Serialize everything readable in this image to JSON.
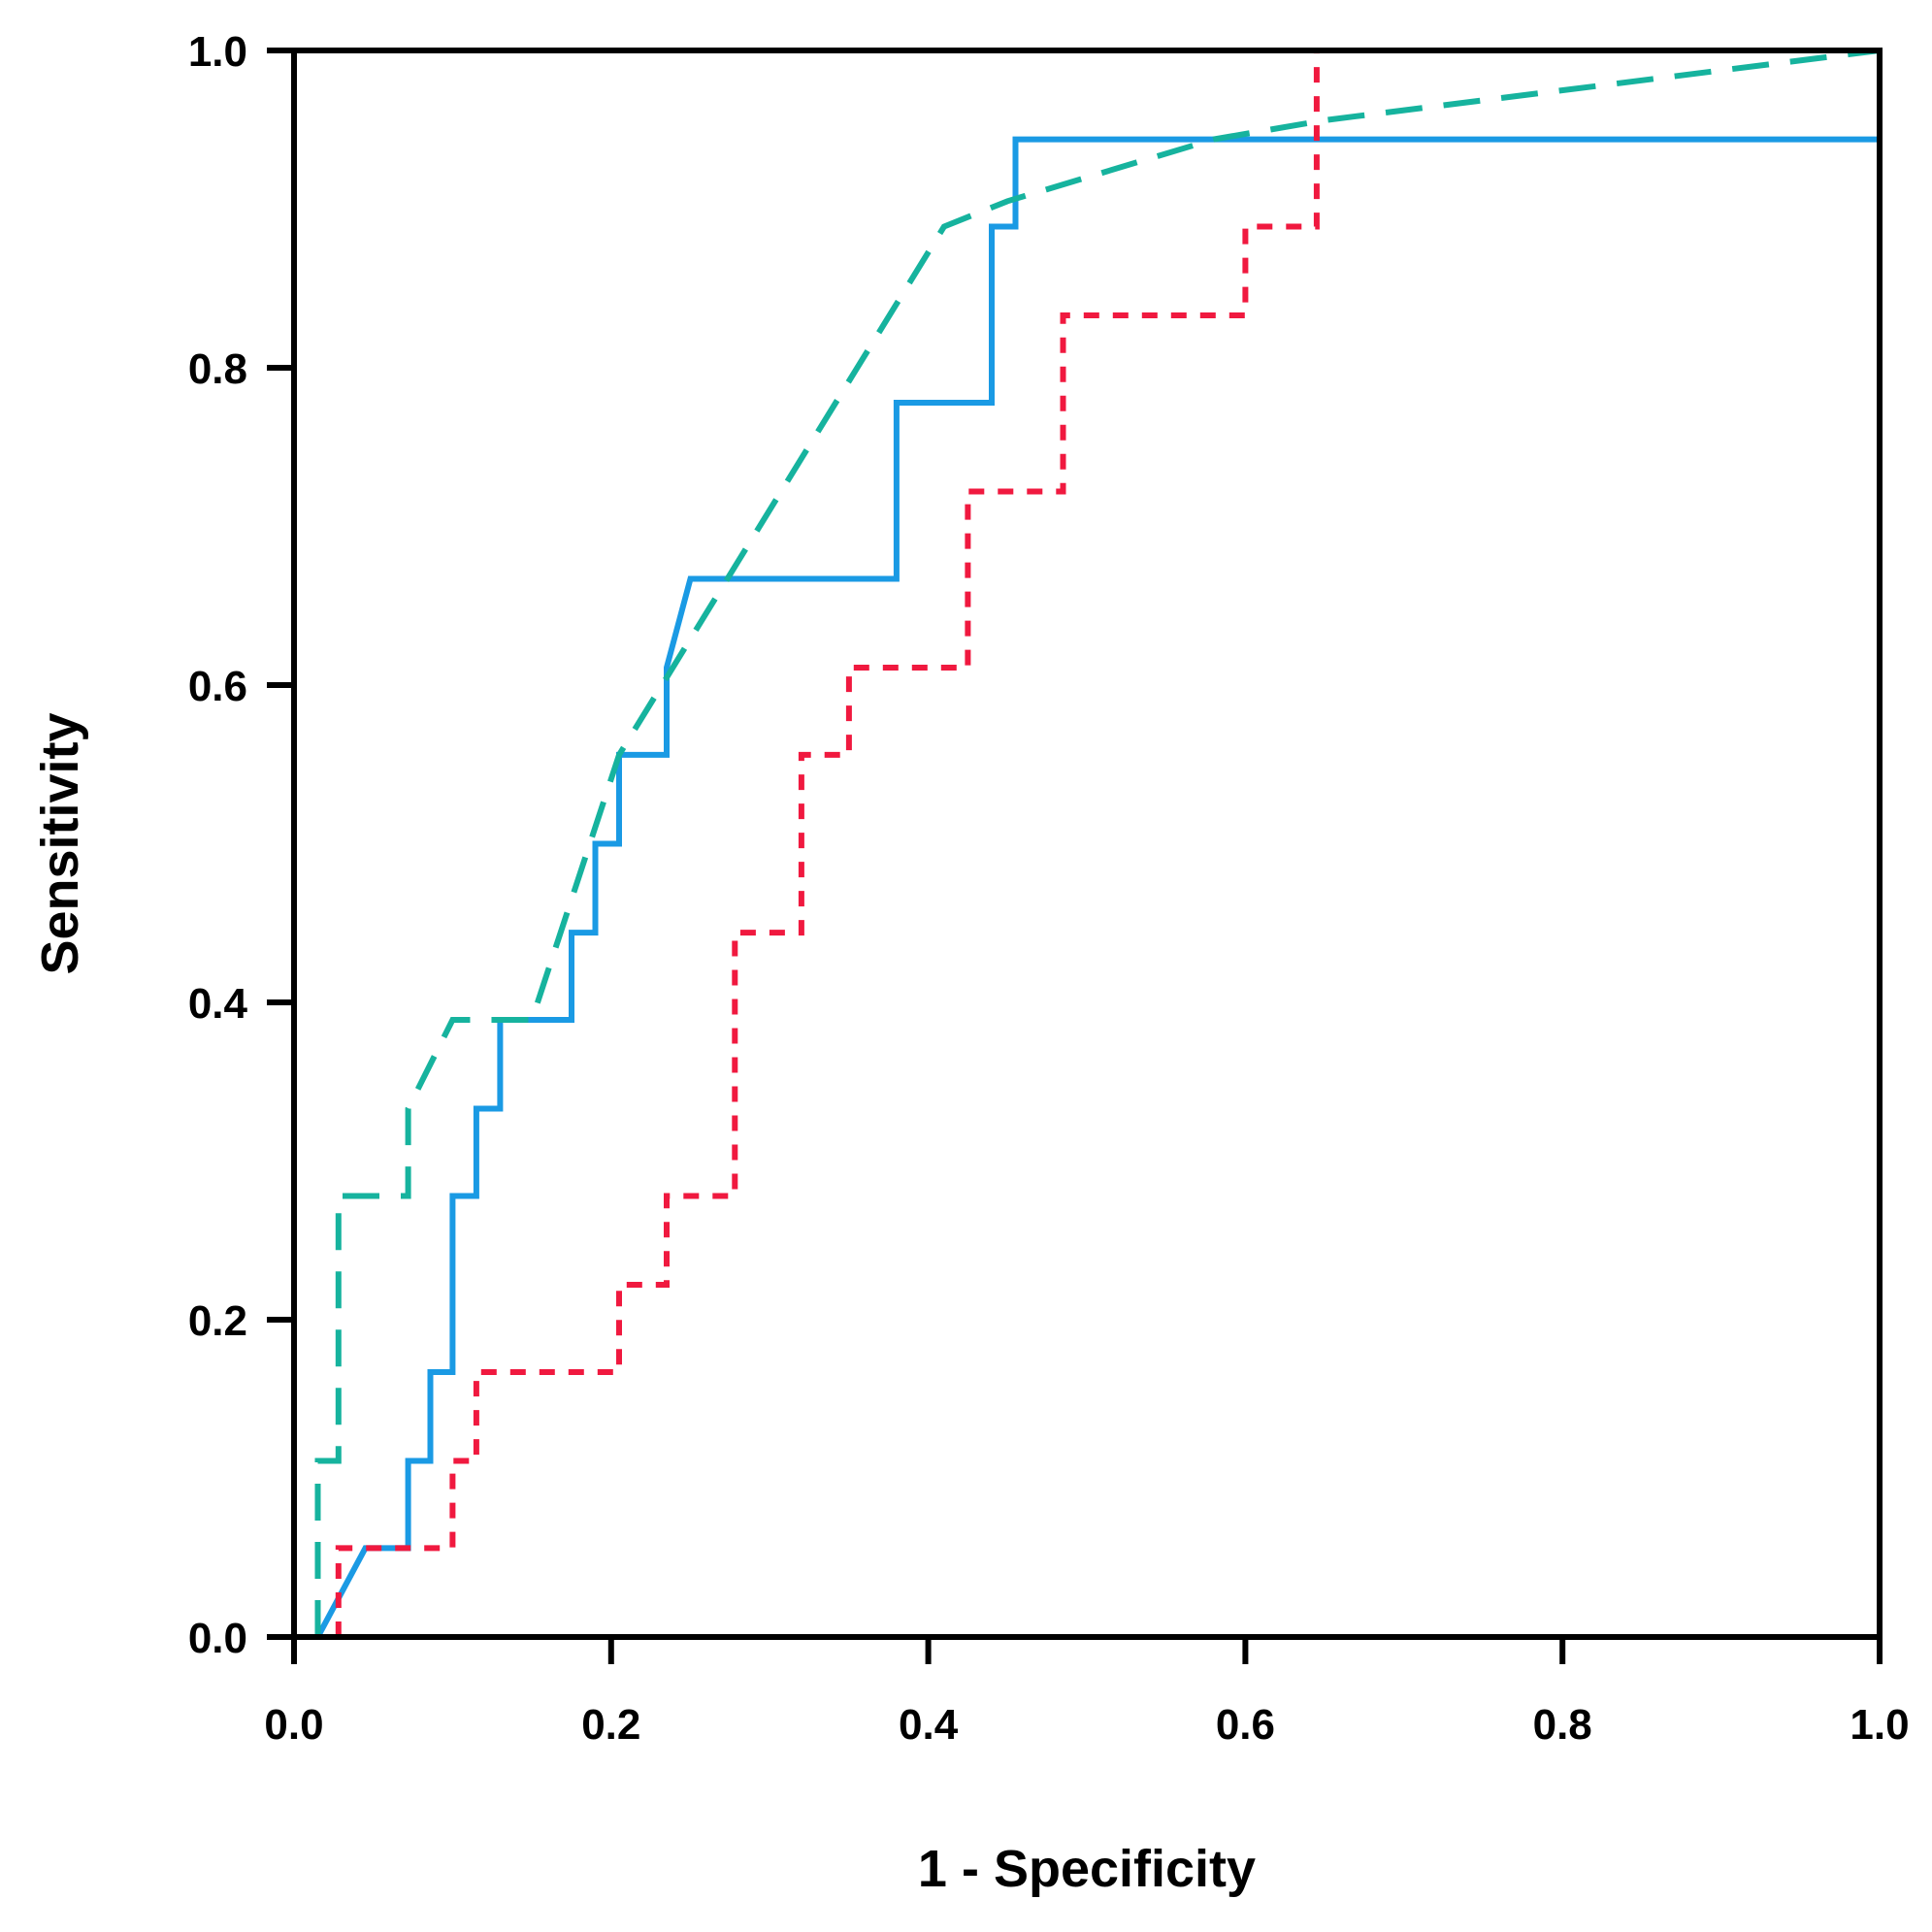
{
  "chart_data": {
    "type": "line",
    "title": "",
    "xlabel": "1 - Specificity",
    "ylabel": "Sensitivity",
    "xlim": [
      0,
      1
    ],
    "ylim": [
      0,
      1
    ],
    "grid": false,
    "legend": "none",
    "xticks": [
      "0.0",
      "0.2",
      "0.4",
      "0.6",
      "0.8",
      "1.0"
    ],
    "yticks": [
      "0.0",
      "0.2",
      "0.4",
      "0.6",
      "0.8",
      "1.0"
    ],
    "series": [
      {
        "name": "blue-solid",
        "color": "#1a9ae4",
        "style": "solid",
        "points": [
          [
            0.015,
            0.0
          ],
          [
            0.045,
            0.056
          ],
          [
            0.072,
            0.056
          ],
          [
            0.072,
            0.111
          ],
          [
            0.086,
            0.111
          ],
          [
            0.086,
            0.167
          ],
          [
            0.1,
            0.167
          ],
          [
            0.1,
            0.278
          ],
          [
            0.115,
            0.278
          ],
          [
            0.115,
            0.333
          ],
          [
            0.13,
            0.333
          ],
          [
            0.13,
            0.389
          ],
          [
            0.175,
            0.389
          ],
          [
            0.175,
            0.444
          ],
          [
            0.19,
            0.444
          ],
          [
            0.19,
            0.5
          ],
          [
            0.205,
            0.5
          ],
          [
            0.205,
            0.556
          ],
          [
            0.235,
            0.556
          ],
          [
            0.235,
            0.611
          ],
          [
            0.25,
            0.667
          ],
          [
            0.38,
            0.667
          ],
          [
            0.38,
            0.778
          ],
          [
            0.44,
            0.778
          ],
          [
            0.44,
            0.889
          ],
          [
            0.455,
            0.889
          ],
          [
            0.455,
            0.944
          ],
          [
            1.0,
            0.944
          ]
        ]
      },
      {
        "name": "red-dotted",
        "color": "#f0193f",
        "style": "dotted",
        "points": [
          [
            0.028,
            0.0
          ],
          [
            0.028,
            0.056
          ],
          [
            0.1,
            0.056
          ],
          [
            0.1,
            0.111
          ],
          [
            0.115,
            0.111
          ],
          [
            0.115,
            0.167
          ],
          [
            0.205,
            0.167
          ],
          [
            0.205,
            0.222
          ],
          [
            0.235,
            0.222
          ],
          [
            0.235,
            0.278
          ],
          [
            0.278,
            0.278
          ],
          [
            0.278,
            0.444
          ],
          [
            0.32,
            0.444
          ],
          [
            0.32,
            0.556
          ],
          [
            0.35,
            0.556
          ],
          [
            0.35,
            0.611
          ],
          [
            0.425,
            0.611
          ],
          [
            0.425,
            0.722
          ],
          [
            0.485,
            0.722
          ],
          [
            0.485,
            0.833
          ],
          [
            0.6,
            0.833
          ],
          [
            0.6,
            0.889
          ],
          [
            0.645,
            0.889
          ],
          [
            0.645,
            1.0
          ]
        ]
      },
      {
        "name": "teal-dashed",
        "color": "#16b39e",
        "style": "dashed",
        "points": [
          [
            0.015,
            0.0
          ],
          [
            0.015,
            0.111
          ],
          [
            0.028,
            0.111
          ],
          [
            0.028,
            0.278
          ],
          [
            0.072,
            0.278
          ],
          [
            0.072,
            0.333
          ],
          [
            0.1,
            0.389
          ],
          [
            0.15,
            0.389
          ],
          [
            0.205,
            0.556
          ],
          [
            0.41,
            0.889
          ],
          [
            0.45,
            0.905
          ],
          [
            0.58,
            0.944
          ],
          [
            0.65,
            0.956
          ],
          [
            1.0,
            1.0
          ]
        ]
      }
    ]
  }
}
